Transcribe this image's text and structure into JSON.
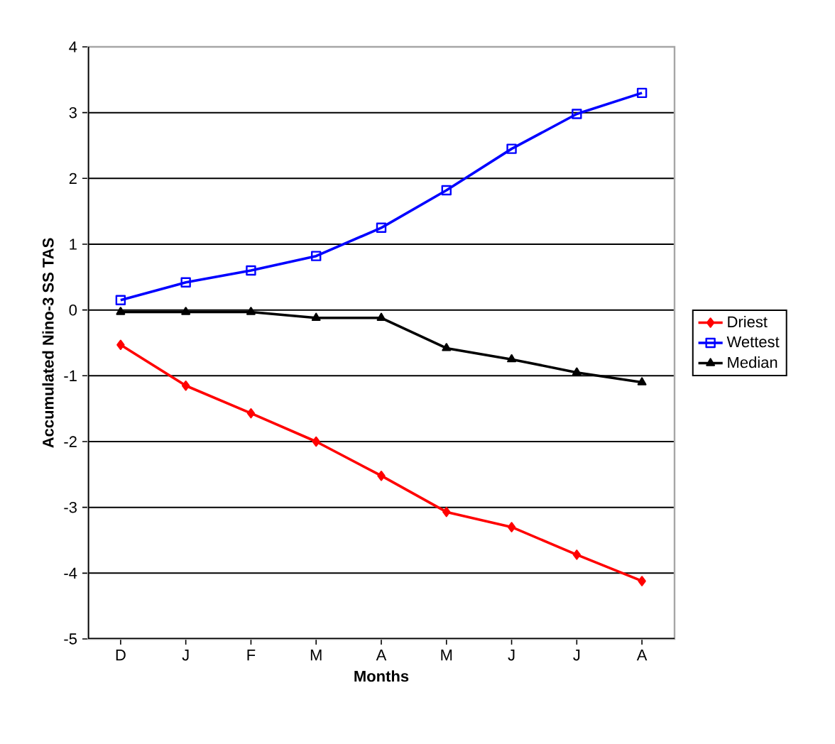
{
  "chart_data": {
    "type": "line",
    "xlabel": "Months",
    "ylabel": "Accumulated Nino-3 SS TAS",
    "categories": [
      "D",
      "J",
      "F",
      "M",
      "A",
      "M",
      "J",
      "J",
      "A"
    ],
    "ylim": [
      -5,
      4
    ],
    "yticks": [
      -5,
      -4,
      -3,
      -2,
      -1,
      0,
      1,
      2,
      3,
      4
    ],
    "grid": "y",
    "legend": "right",
    "line_style": "solid",
    "series": [
      {
        "name": "Driest",
        "color": "#ff0000",
        "marker": "diamond",
        "values": [
          -0.53,
          -1.15,
          -1.57,
          -2.0,
          -2.52,
          -3.07,
          -3.3,
          -3.72,
          -4.12
        ]
      },
      {
        "name": "Wettest",
        "color": "#0000ff",
        "marker": "square",
        "values": [
          0.15,
          0.42,
          0.6,
          0.82,
          1.25,
          1.82,
          2.45,
          2.98,
          3.3
        ]
      },
      {
        "name": "Median",
        "color": "#000000",
        "marker": "triangle",
        "values": [
          -0.03,
          -0.03,
          -0.03,
          -0.12,
          -0.12,
          -0.58,
          -0.75,
          -0.95,
          -1.1
        ]
      }
    ]
  }
}
